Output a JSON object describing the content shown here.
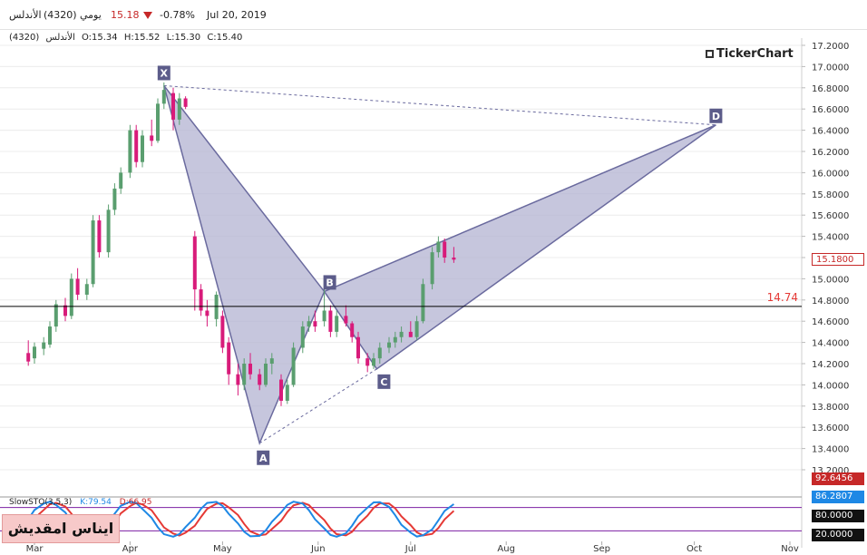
{
  "header": {
    "symbol_name": "الأندلس",
    "symbol_code": "(4320)",
    "period": "يومي",
    "last_price": "15.18",
    "change_pct": "-0.78%",
    "date": "Jul 20, 2019"
  },
  "ohlc": {
    "name": "الأندلس",
    "code": "(4320)",
    "open": "O:15.34",
    "high": "H:15.52",
    "low": "L:15.30",
    "close": "C:15.40"
  },
  "brand": "TickerChart",
  "colors": {
    "up": "#5a9e6f",
    "down": "#d81b7a",
    "pattern_fill": "#b3b3d1",
    "pattern_stroke": "#6a6a9e",
    "label_bg": "#5c5c8a",
    "current_price": "#e53935",
    "level_line": "#000000",
    "k_line": "#1e88e5",
    "d_line": "#e53935",
    "stoch_band": "#7b1fa2"
  },
  "chart_data": {
    "type": "candlestick",
    "title": "",
    "ylim": [
      13.2,
      17.2
    ],
    "y_ticks": [
      "17.2000",
      "17.0000",
      "16.8000",
      "16.6000",
      "16.4000",
      "16.2000",
      "16.0000",
      "15.8000",
      "15.6000",
      "15.4000",
      "15.2000",
      "15.0000",
      "14.8000",
      "14.6000",
      "14.4000",
      "14.2000",
      "14.0000",
      "13.8000",
      "13.6000",
      "13.4000",
      "13.2000"
    ],
    "x_ticks": [
      "Mar",
      "Apr",
      "May",
      "Jun",
      "Jul",
      "Aug",
      "Sep",
      "Oct",
      "Nov"
    ],
    "current_price": "15.1800",
    "level_value": "14.74",
    "harmonic_points": [
      {
        "label": "X",
        "date": "Apr 12",
        "value": 16.82
      },
      {
        "label": "A",
        "date": "May 13",
        "value": 13.45
      },
      {
        "label": "B",
        "date": "Jun 3",
        "value": 14.88
      },
      {
        "label": "C",
        "date": "Jun 20",
        "value": 14.15
      },
      {
        "label": "D",
        "date": "Oct 8",
        "value": 16.45
      }
    ],
    "candles": [
      {
        "date": "Feb 27",
        "open": 14.3,
        "high": 14.42,
        "low": 14.18,
        "close": 14.22
      },
      {
        "date": "Mar 1",
        "open": 14.25,
        "high": 14.4,
        "low": 14.2,
        "close": 14.36
      },
      {
        "date": "Mar 4",
        "open": 14.34,
        "high": 14.45,
        "low": 14.28,
        "close": 14.4
      },
      {
        "date": "Mar 6",
        "open": 14.38,
        "high": 14.6,
        "low": 14.35,
        "close": 14.55
      },
      {
        "date": "Mar 8",
        "open": 14.55,
        "high": 14.8,
        "low": 14.5,
        "close": 14.76
      },
      {
        "date": "Mar 11",
        "open": 14.75,
        "high": 14.82,
        "low": 14.6,
        "close": 14.65
      },
      {
        "date": "Mar 13",
        "open": 14.65,
        "high": 15.05,
        "low": 14.62,
        "close": 15.0
      },
      {
        "date": "Mar 15",
        "open": 15.0,
        "high": 15.1,
        "low": 14.8,
        "close": 14.85
      },
      {
        "date": "Mar 18",
        "open": 14.85,
        "high": 15.0,
        "low": 14.8,
        "close": 14.95
      },
      {
        "date": "Mar 20",
        "open": 14.95,
        "high": 15.6,
        "low": 14.92,
        "close": 15.55
      },
      {
        "date": "Mar 22",
        "open": 15.55,
        "high": 15.6,
        "low": 15.2,
        "close": 15.25
      },
      {
        "date": "Mar 25",
        "open": 15.25,
        "high": 15.7,
        "low": 15.2,
        "close": 15.65
      },
      {
        "date": "Mar 27",
        "open": 15.65,
        "high": 15.9,
        "low": 15.6,
        "close": 15.85
      },
      {
        "date": "Mar 29",
        "open": 15.85,
        "high": 16.05,
        "low": 15.8,
        "close": 16.0
      },
      {
        "date": "Apr 1",
        "open": 16.0,
        "high": 16.45,
        "low": 15.95,
        "close": 16.4
      },
      {
        "date": "Apr 3",
        "open": 16.4,
        "high": 16.45,
        "low": 16.05,
        "close": 16.1
      },
      {
        "date": "Apr 5",
        "open": 16.1,
        "high": 16.4,
        "low": 16.05,
        "close": 16.35
      },
      {
        "date": "Apr 8",
        "open": 16.35,
        "high": 16.5,
        "low": 16.25,
        "close": 16.3
      },
      {
        "date": "Apr 10",
        "open": 16.3,
        "high": 16.7,
        "low": 16.28,
        "close": 16.65
      },
      {
        "date": "Apr 12",
        "open": 16.65,
        "high": 16.85,
        "low": 16.6,
        "close": 16.78
      },
      {
        "date": "Apr 15",
        "open": 16.75,
        "high": 16.8,
        "low": 16.4,
        "close": 16.5
      },
      {
        "date": "Apr 17",
        "open": 16.5,
        "high": 16.75,
        "low": 16.45,
        "close": 16.7
      },
      {
        "date": "Apr 19",
        "open": 16.7,
        "high": 16.72,
        "low": 16.6,
        "close": 16.62
      },
      {
        "date": "Apr 22",
        "open": 15.4,
        "high": 15.45,
        "low": 14.7,
        "close": 14.9
      },
      {
        "date": "Apr 24",
        "open": 14.9,
        "high": 14.95,
        "low": 14.65,
        "close": 14.7
      },
      {
        "date": "Apr 26",
        "open": 14.7,
        "high": 14.8,
        "low": 14.55,
        "close": 14.65
      },
      {
        "date": "Apr 29",
        "open": 14.62,
        "high": 14.88,
        "low": 14.55,
        "close": 14.85
      },
      {
        "date": "May 1",
        "open": 14.65,
        "high": 14.7,
        "low": 14.3,
        "close": 14.35
      },
      {
        "date": "May 3",
        "open": 14.4,
        "high": 14.45,
        "low": 14.0,
        "close": 14.1
      },
      {
        "date": "May 6",
        "open": 14.1,
        "high": 14.2,
        "low": 13.9,
        "close": 14.0
      },
      {
        "date": "May 8",
        "open": 14.0,
        "high": 14.25,
        "low": 13.95,
        "close": 14.2
      },
      {
        "date": "May 10",
        "open": 14.2,
        "high": 14.3,
        "low": 14.05,
        "close": 14.1
      },
      {
        "date": "May 13",
        "open": 14.1,
        "high": 14.15,
        "low": 13.95,
        "close": 14.0
      },
      {
        "date": "May 15",
        "open": 14.0,
        "high": 14.25,
        "low": 13.98,
        "close": 14.2
      },
      {
        "date": "May 17",
        "open": 14.2,
        "high": 14.3,
        "low": 14.1,
        "close": 14.25
      },
      {
        "date": "May 20",
        "open": 14.05,
        "high": 14.1,
        "low": 13.8,
        "close": 13.85
      },
      {
        "date": "May 22",
        "open": 13.85,
        "high": 14.05,
        "low": 13.82,
        "close": 14.0
      },
      {
        "date": "May 24",
        "open": 14.0,
        "high": 14.4,
        "low": 13.98,
        "close": 14.35
      },
      {
        "date": "May 27",
        "open": 14.35,
        "high": 14.6,
        "low": 14.3,
        "close": 14.55
      },
      {
        "date": "May 29",
        "open": 14.55,
        "high": 14.65,
        "low": 14.5,
        "close": 14.6
      },
      {
        "date": "May 31",
        "open": 14.6,
        "high": 14.7,
        "low": 14.5,
        "close": 14.55
      },
      {
        "date": "Jun 3",
        "open": 14.6,
        "high": 14.9,
        "low": 14.55,
        "close": 14.7
      },
      {
        "date": "Jun 5",
        "open": 14.7,
        "high": 14.75,
        "low": 14.45,
        "close": 14.5
      },
      {
        "date": "Jun 7",
        "open": 14.5,
        "high": 14.7,
        "low": 14.45,
        "close": 14.65
      },
      {
        "date": "Jun 10",
        "open": 14.65,
        "high": 14.75,
        "low": 14.55,
        "close": 14.58
      },
      {
        "date": "Jun 12",
        "open": 14.58,
        "high": 14.6,
        "low": 14.4,
        "close": 14.45
      },
      {
        "date": "Jun 14",
        "open": 14.45,
        "high": 14.5,
        "low": 14.2,
        "close": 14.25
      },
      {
        "date": "Jun 17",
        "open": 14.25,
        "high": 14.3,
        "low": 14.12,
        "close": 14.18
      },
      {
        "date": "Jun 19",
        "open": 14.18,
        "high": 14.3,
        "low": 14.15,
        "close": 14.25
      },
      {
        "date": "Jun 21",
        "open": 14.25,
        "high": 14.4,
        "low": 14.2,
        "close": 14.35
      },
      {
        "date": "Jun 24",
        "open": 14.35,
        "high": 14.45,
        "low": 14.3,
        "close": 14.4
      },
      {
        "date": "Jun 26",
        "open": 14.4,
        "high": 14.5,
        "low": 14.35,
        "close": 14.45
      },
      {
        "date": "Jun 28",
        "open": 14.45,
        "high": 14.55,
        "low": 14.4,
        "close": 14.5
      },
      {
        "date": "Jul 1",
        "open": 14.5,
        "high": 14.6,
        "low": 14.45,
        "close": 14.45
      },
      {
        "date": "Jul 3",
        "open": 14.45,
        "high": 14.65,
        "low": 14.42,
        "close": 14.6
      },
      {
        "date": "Jul 5",
        "open": 14.6,
        "high": 15.0,
        "low": 14.58,
        "close": 14.95
      },
      {
        "date": "Jul 8",
        "open": 14.95,
        "high": 15.3,
        "low": 14.9,
        "close": 15.25
      },
      {
        "date": "Jul 10",
        "open": 15.25,
        "high": 15.4,
        "low": 15.2,
        "close": 15.35
      },
      {
        "date": "Jul 12",
        "open": 15.35,
        "high": 15.38,
        "low": 15.15,
        "close": 15.2
      },
      {
        "date": "Jul 15",
        "open": 15.2,
        "high": 15.3,
        "low": 15.15,
        "close": 15.18
      }
    ],
    "stochastic": {
      "label": "SlowSTO(3,5,3)",
      "k_label": "K:79.54",
      "d_label": "D:66.95",
      "k_value": 79.54,
      "d_value": 66.95,
      "tags": [
        "92.6456",
        "86.2807",
        "80.0000",
        "20.0000"
      ],
      "levels": [
        80,
        20
      ]
    }
  },
  "stoch_badge": "ايناس امقديش"
}
